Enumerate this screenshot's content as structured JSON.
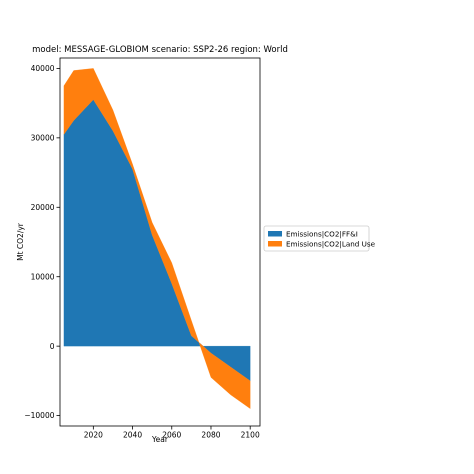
{
  "chart_data": {
    "type": "area",
    "stacked": true,
    "title": "model: MESSAGE-GLOBIOM scenario: SSP2-26 region: World",
    "xlabel": "Year",
    "ylabel": "Mt CO2/yr",
    "x": [
      2005,
      2010,
      2020,
      2030,
      2040,
      2050,
      2060,
      2070,
      2080,
      2090,
      2100
    ],
    "xlim": [
      2003,
      2105
    ],
    "ylim": [
      -11500,
      41500
    ],
    "xticks": [
      2020,
      2040,
      2060,
      2080,
      2100
    ],
    "xtick_labels": [
      "2020",
      "2040",
      "2060",
      "2080",
      "2100"
    ],
    "yticks": [
      -10000,
      0,
      10000,
      20000,
      30000,
      40000
    ],
    "ytick_labels": [
      "−10000",
      "0",
      "10000",
      "20000",
      "30000",
      "40000"
    ],
    "series": [
      {
        "name": "Emissions|CO2|FF&I",
        "color": "#1f77b4",
        "values": [
          30500,
          32500,
          35500,
          31000,
          25500,
          16000,
          9000,
          1500,
          -1000,
          -3000,
          -5000
        ]
      },
      {
        "name": "Emissions|CO2|Land Use",
        "color": "#ff7f0e",
        "values": [
          7000,
          7200,
          4500,
          3000,
          700,
          1800,
          3000,
          2200,
          -3500,
          -4000,
          -4000
        ]
      }
    ],
    "legend_position": "right",
    "grid": false
  }
}
